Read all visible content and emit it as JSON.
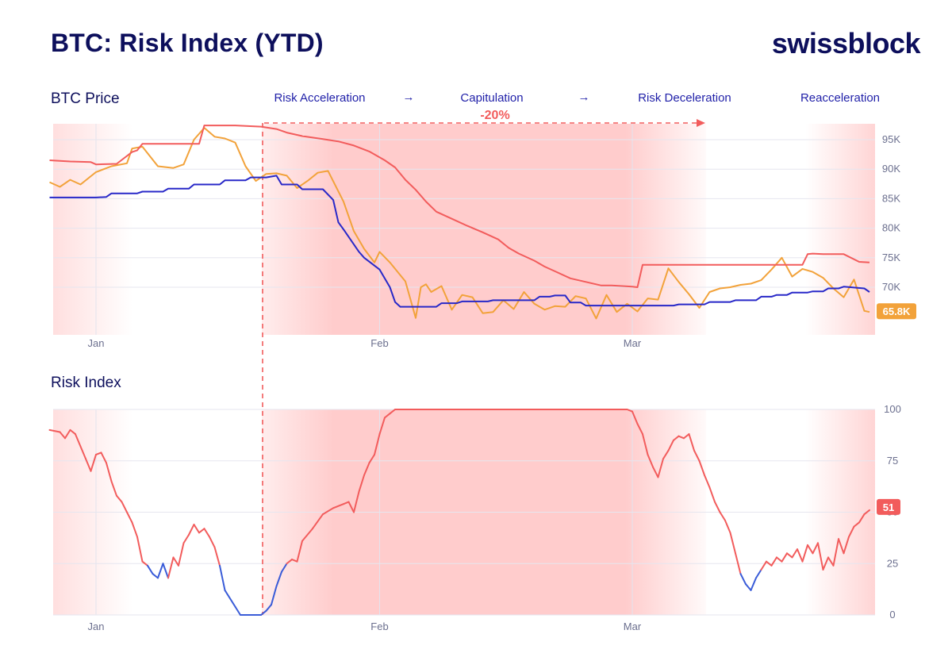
{
  "header": {
    "title": "BTC: Risk Index (YTD)",
    "brand": "swissblock"
  },
  "panels": {
    "price_label": "BTC Price",
    "risk_label": "Risk Index"
  },
  "phases": [
    {
      "label": "Risk Acceleration"
    },
    {
      "label": "Capitulation"
    },
    {
      "label": "Risk Deceleration"
    },
    {
      "label": "Reacceleration"
    }
  ],
  "phase_arrow": "→",
  "drawdown_label": "-20%",
  "colors": {
    "navy": "#0d0f5c",
    "red": "#f25c5c",
    "orange": "#f2a23a",
    "blue": "#2828c8",
    "risk_blue": "#3a5cd8",
    "shade": "#ff9a9a"
  },
  "chart_data": [
    {
      "type": "line",
      "title": "BTC Price",
      "x_range_days": [
        -9,
        151
      ],
      "x_ticks": [
        {
          "day": 0,
          "label": "Jan"
        },
        {
          "day": 55,
          "label": "Feb"
        },
        {
          "day": 104,
          "label": "Mar"
        }
      ],
      "y_ticks": [
        {
          "value": 70000,
          "label": "70K"
        },
        {
          "value": 75000,
          "label": "75K"
        },
        {
          "value": 80000,
          "label": "80K"
        },
        {
          "value": 85000,
          "label": "85K"
        },
        {
          "value": 90000,
          "label": "90K"
        },
        {
          "value": 95000,
          "label": "95K"
        }
      ],
      "ylim": [
        62000,
        98500
      ],
      "last_value_label": "65.8K",
      "series": [
        {
          "name": "BTC Price",
          "color": "orange",
          "x": [
            -9,
            -7,
            -5,
            -3,
            0,
            3,
            6,
            7,
            9,
            12,
            15,
            17,
            19,
            21,
            23,
            25,
            27,
            29,
            31,
            33,
            35,
            37,
            39,
            41,
            43,
            45,
            48,
            50,
            52,
            54,
            55,
            57,
            60,
            62,
            63,
            64,
            65,
            67,
            69,
            71,
            73,
            75,
            77,
            79,
            81,
            83,
            85,
            87,
            89,
            91,
            93,
            95,
            97,
            99,
            101,
            103,
            105,
            107,
            109,
            111,
            113,
            115,
            117,
            119,
            121,
            123,
            125,
            127,
            129,
            131,
            133,
            135,
            137,
            139,
            141,
            143,
            145,
            147,
            149,
            150
          ],
          "y": [
            87800,
            87000,
            88200,
            87400,
            89500,
            90500,
            91000,
            93500,
            93800,
            90500,
            90200,
            90800,
            95000,
            97000,
            95500,
            95200,
            94500,
            90500,
            88000,
            89200,
            89300,
            88900,
            86800,
            88000,
            89400,
            89700,
            84500,
            79500,
            76500,
            74200,
            76000,
            74200,
            71000,
            64800,
            70000,
            70500,
            69200,
            70200,
            66200,
            68700,
            68300,
            65600,
            65800,
            67800,
            66300,
            69200,
            67200,
            66200,
            66800,
            66700,
            68500,
            68100,
            64700,
            68700,
            65800,
            67200,
            65900,
            68100,
            67900,
            73200,
            70900,
            68800,
            66500,
            69200,
            69800,
            70000,
            70400,
            70600,
            71200,
            73000,
            75000,
            71800,
            73100,
            72600,
            71600,
            69800,
            68300,
            71300,
            66000,
            65800
          ]
        },
        {
          "name": "Upper band",
          "color": "red",
          "x": [
            -9,
            -5,
            -1,
            0,
            4,
            7,
            8,
            9,
            14,
            17,
            20,
            21,
            22,
            27,
            32,
            35,
            37,
            40,
            44,
            47,
            50,
            53,
            56,
            58,
            60,
            62,
            64,
            66,
            69,
            72,
            75,
            78,
            80,
            82,
            85,
            87,
            89,
            92,
            95,
            98,
            100,
            102,
            104,
            105,
            106,
            107,
            110,
            114,
            118,
            122,
            126,
            130,
            134,
            137,
            138,
            139,
            141,
            145,
            148,
            150
          ],
          "y": [
            91500,
            91300,
            91200,
            90800,
            90900,
            92900,
            93200,
            94300,
            94300,
            94300,
            94300,
            97400,
            97400,
            97400,
            97200,
            96800,
            96200,
            95600,
            95100,
            94700,
            94000,
            93000,
            91500,
            90300,
            88200,
            86500,
            84500,
            82800,
            81600,
            80400,
            79300,
            78100,
            76700,
            75700,
            74500,
            73500,
            72700,
            71500,
            70900,
            70300,
            70300,
            70200,
            70100,
            70000,
            73800,
            73800,
            73800,
            73800,
            73800,
            73800,
            73800,
            73800,
            73800,
            73800,
            75600,
            75700,
            75600,
            75600,
            74300,
            74200
          ]
        },
        {
          "name": "Lower band",
          "color": "blue",
          "x": [
            -9,
            0,
            2,
            3,
            8,
            9,
            13,
            14,
            18,
            19,
            24,
            25,
            29,
            30,
            32,
            33,
            35,
            36,
            39,
            40,
            44,
            46,
            47,
            48,
            51,
            52,
            55,
            57,
            58,
            59,
            60,
            61,
            62,
            63,
            66,
            67,
            70,
            71,
            76,
            77,
            85,
            86,
            88,
            89,
            91,
            92,
            94,
            95,
            96,
            101,
            104,
            105,
            106,
            107,
            112,
            113,
            118,
            119,
            123,
            124,
            128,
            129,
            131,
            132,
            134,
            135,
            138,
            139,
            141,
            142,
            144,
            145,
            149,
            150
          ],
          "y": [
            85200,
            85200,
            85300,
            85900,
            85900,
            86200,
            86200,
            86700,
            86700,
            87400,
            87400,
            88100,
            88100,
            88600,
            88600,
            88600,
            88900,
            87400,
            87400,
            86600,
            86600,
            84800,
            81000,
            79800,
            76000,
            75000,
            73000,
            70000,
            67500,
            66700,
            66700,
            66700,
            66700,
            66700,
            66700,
            67300,
            67300,
            67600,
            67600,
            67800,
            67800,
            68400,
            68400,
            68600,
            68600,
            67400,
            67400,
            66900,
            66900,
            66900,
            66900,
            66900,
            66900,
            66900,
            66900,
            67100,
            67100,
            67500,
            67500,
            67800,
            67800,
            68400,
            68400,
            68700,
            68700,
            69100,
            69100,
            69300,
            69300,
            69800,
            69800,
            70100,
            69800,
            69200
          ]
        }
      ]
    },
    {
      "type": "line",
      "title": "Risk Index",
      "x_range_days": [
        -9,
        151
      ],
      "x_ticks": [
        {
          "day": 0,
          "label": "Jan"
        },
        {
          "day": 55,
          "label": "Feb"
        },
        {
          "day": 104,
          "label": "Mar"
        }
      ],
      "y_ticks": [
        {
          "value": 0,
          "label": "0"
        },
        {
          "value": 25,
          "label": "25"
        },
        {
          "value": 50,
          "label": "50"
        },
        {
          "value": 75,
          "label": "75"
        },
        {
          "value": 100,
          "label": "100"
        }
      ],
      "ylim": [
        0,
        100
      ],
      "last_value_label": "51",
      "color_rule": "blue below 25, red otherwise",
      "series": [
        {
          "name": "Risk Index",
          "x": [
            -9,
            -7,
            -6,
            -5,
            -4,
            -3,
            -2,
            -1,
            0,
            1,
            2,
            3,
            4,
            5,
            6,
            7,
            8,
            9,
            10,
            11,
            12,
            13,
            14,
            15,
            16,
            17,
            18,
            19,
            20,
            21,
            22,
            23,
            24,
            25,
            27,
            28,
            29,
            30,
            31,
            32,
            33,
            34,
            35,
            36,
            37,
            38,
            39,
            40,
            42,
            44,
            46,
            48,
            49,
            50,
            51,
            52,
            53,
            54,
            55,
            56,
            57,
            58,
            60,
            64,
            68,
            72,
            76,
            80,
            84,
            88,
            92,
            96,
            100,
            103,
            104,
            105,
            106,
            107,
            108,
            109,
            110,
            111,
            112,
            113,
            114,
            115,
            116,
            117,
            118,
            119,
            120,
            121,
            122,
            123,
            124,
            125,
            126,
            127,
            128,
            129,
            130,
            131,
            132,
            133,
            134,
            135,
            136,
            137,
            138,
            139,
            140,
            141,
            142,
            143,
            144,
            145,
            146,
            147,
            148,
            149,
            150
          ],
          "y": [
            90,
            89,
            86,
            90,
            88,
            82,
            76,
            70,
            78,
            79,
            74,
            65,
            58,
            55,
            50,
            45,
            38,
            26,
            24,
            20,
            18,
            25,
            18,
            28,
            24,
            35,
            39,
            44,
            40,
            42,
            38,
            33,
            24,
            12,
            4,
            0,
            0,
            0,
            0,
            0,
            2,
            5,
            14,
            21,
            25,
            27,
            26,
            36,
            42,
            49,
            52,
            54,
            55,
            50,
            60,
            68,
            74,
            78,
            88,
            96,
            98,
            100,
            100,
            100,
            100,
            100,
            100,
            100,
            100,
            100,
            100,
            100,
            100,
            100,
            99,
            93,
            88,
            78,
            72,
            67,
            76,
            80,
            85,
            87,
            86,
            88,
            80,
            75,
            68,
            62,
            55,
            50,
            46,
            40,
            30,
            20,
            15,
            12,
            18,
            22,
            26,
            24,
            28,
            26,
            30,
            28,
            32,
            26,
            34,
            30,
            35,
            22,
            28,
            24,
            37,
            30,
            38,
            43,
            45,
            49,
            51
          ]
        }
      ]
    }
  ]
}
